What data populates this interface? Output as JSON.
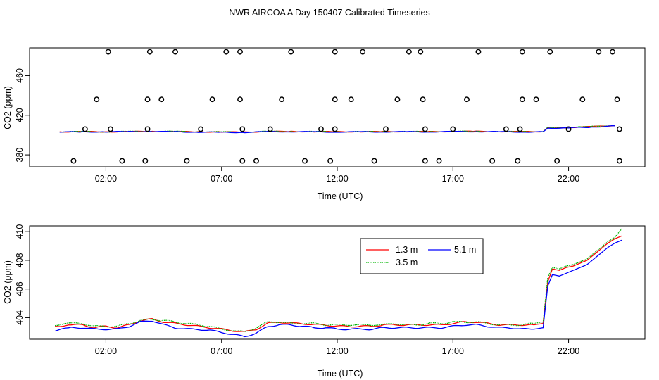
{
  "title": "NWR AIRCOA A  Day 150407  Calibrated Timeseries",
  "colors": {
    "red": "#ff0000",
    "green": "#00b400",
    "blue": "#0000ff",
    "axis": "#000000"
  },
  "chart_data": [
    {
      "type": "scatter",
      "title": "",
      "xlabel": "Time (UTC)",
      "ylabel": "CO2 (ppm)",
      "xlim_hours": [
        -1.3,
        25.3
      ],
      "ylim": [
        368,
        488
      ],
      "xticks": [
        2,
        7,
        12,
        17,
        22
      ],
      "xtick_labels": [
        "02:00",
        "07:00",
        "12:00",
        "17:00",
        "22:00"
      ],
      "yticks": [
        380,
        420,
        460
      ],
      "ytick_labels": [
        "380",
        "420",
        "460"
      ],
      "points_hours": {
        "y374": [
          0.6,
          2.7,
          3.7,
          5.5,
          7.9,
          8.5,
          10.6,
          11.7,
          13.6,
          15.8,
          16.4,
          18.7,
          19.8,
          21.5,
          24.2
        ],
        "y406": [
          1.1,
          2.2,
          3.8,
          6.1,
          7.9,
          9.1,
          11.3,
          11.9,
          14.1,
          15.8,
          17.0,
          19.3,
          19.9,
          22.0,
          24.2
        ],
        "y436": [
          1.6,
          3.8,
          4.4,
          6.6,
          7.8,
          9.6,
          11.9,
          12.6,
          14.6,
          15.7,
          17.6,
          20.0,
          20.6,
          22.6,
          24.1
        ],
        "y484": [
          2.1,
          3.9,
          5.0,
          7.2,
          7.8,
          10.0,
          11.9,
          13.1,
          15.1,
          15.6,
          18.1,
          20.0,
          21.2,
          23.3,
          23.9
        ]
      },
      "series": [
        {
          "name": "1.3 m",
          "color": "#ff0000",
          "x": [
            0,
            1,
            2,
            3,
            4,
            5,
            6,
            7,
            8,
            9,
            10,
            11,
            12,
            13,
            14,
            15,
            16,
            17,
            18,
            19,
            20,
            20.9,
            21.1,
            22,
            23,
            24
          ],
          "values": [
            403.3,
            403.4,
            403.3,
            403.5,
            403.7,
            403.5,
            403.3,
            403.2,
            403.0,
            403.6,
            403.6,
            403.4,
            403.4,
            403.4,
            403.5,
            403.5,
            403.4,
            403.6,
            403.7,
            403.5,
            403.4,
            403.5,
            407.4,
            407.6,
            408.5,
            409.7
          ]
        },
        {
          "name": "3.5 m",
          "color": "#00b400",
          "x": [
            0,
            1,
            2,
            3,
            4,
            5,
            6,
            7,
            8,
            9,
            10,
            11,
            12,
            13,
            14,
            15,
            16,
            17,
            18,
            19,
            20,
            20.9,
            21.1,
            22,
            23,
            24
          ],
          "values": [
            403.4,
            403.5,
            403.3,
            403.6,
            403.8,
            403.6,
            403.4,
            403.2,
            403.0,
            403.7,
            403.6,
            403.5,
            403.4,
            403.4,
            403.5,
            403.5,
            403.5,
            403.6,
            403.7,
            403.5,
            403.5,
            403.6,
            407.5,
            407.6,
            408.6,
            410.0
          ]
        },
        {
          "name": "5.1 m",
          "color": "#0000ff",
          "x": [
            0,
            1,
            2,
            3,
            4,
            5,
            6,
            7,
            8,
            9,
            10,
            11,
            12,
            13,
            14,
            15,
            16,
            17,
            18,
            19,
            20,
            20.9,
            21.1,
            22,
            23,
            24
          ],
          "values": [
            403.1,
            403.2,
            403.2,
            403.5,
            403.6,
            403.3,
            403.0,
            402.8,
            402.7,
            403.4,
            403.4,
            403.2,
            403.1,
            403.2,
            403.3,
            403.3,
            403.3,
            403.4,
            403.5,
            403.3,
            403.1,
            403.3,
            407.0,
            407.2,
            408.0,
            409.3
          ]
        }
      ]
    },
    {
      "type": "line",
      "title": "",
      "xlabel": "Time (UTC)",
      "ylabel": "CO2 (ppm)",
      "xlim_hours": [
        -1.3,
        25.3
      ],
      "ylim": [
        402.5,
        410.4
      ],
      "xticks": [
        2,
        7,
        12,
        17,
        22
      ],
      "xtick_labels": [
        "02:00",
        "07:00",
        "12:00",
        "17:00",
        "22:00"
      ],
      "yticks": [
        404,
        406,
        408,
        410
      ],
      "ytick_labels": [
        "404",
        "406",
        "408",
        "410"
      ],
      "legend": {
        "placement": "top-right",
        "entries": [
          "1.3 m",
          "3.5 m",
          "5.1 m"
        ]
      },
      "series": [
        {
          "name": "1.3 m",
          "color": "#ff0000",
          "x": [
            -0.2,
            0.5,
            1,
            1.5,
            2,
            2.5,
            3,
            3.5,
            4,
            4.5,
            5,
            5.5,
            6,
            6.5,
            7,
            7.5,
            8,
            8.5,
            9,
            9.5,
            10,
            10.5,
            11,
            11.5,
            12,
            12.5,
            13,
            13.5,
            14,
            14.5,
            15,
            15.5,
            16,
            16.5,
            17,
            17.5,
            18,
            18.5,
            19,
            19.5,
            20,
            20.5,
            20.9,
            21.1,
            21.3,
            21.6,
            21.9,
            22.2,
            22.5,
            22.8,
            23.1,
            23.4,
            23.7,
            24.0,
            24.3
          ],
          "values": [
            403.4,
            403.5,
            403.5,
            403.3,
            403.4,
            403.3,
            403.5,
            403.8,
            403.9,
            403.7,
            403.6,
            403.5,
            403.4,
            403.3,
            403.2,
            403.1,
            403.0,
            403.2,
            403.6,
            403.7,
            403.6,
            403.6,
            403.5,
            403.5,
            403.4,
            403.4,
            403.4,
            403.4,
            403.5,
            403.5,
            403.5,
            403.5,
            403.5,
            403.5,
            403.6,
            403.7,
            403.7,
            403.6,
            403.5,
            403.5,
            403.5,
            403.5,
            403.6,
            406.5,
            407.4,
            407.3,
            407.5,
            407.6,
            407.8,
            408.0,
            408.4,
            408.8,
            409.2,
            409.5,
            409.7
          ]
        },
        {
          "name": "3.5 m",
          "color": "#00b400",
          "x": [
            -0.2,
            0.5,
            1,
            1.5,
            2,
            2.5,
            3,
            3.5,
            4,
            4.5,
            5,
            5.5,
            6,
            6.5,
            7,
            7.5,
            8,
            8.5,
            9,
            9.5,
            10,
            10.5,
            11,
            11.5,
            12,
            12.5,
            13,
            13.5,
            14,
            14.5,
            15,
            15.5,
            16,
            16.5,
            17,
            17.5,
            18,
            18.5,
            19,
            19.5,
            20,
            20.5,
            20.9,
            21.1,
            21.3,
            21.6,
            21.9,
            22.2,
            22.5,
            22.8,
            23.1,
            23.4,
            23.7,
            24.0,
            24.3
          ],
          "values": [
            403.5,
            403.6,
            403.6,
            403.4,
            403.4,
            403.4,
            403.6,
            403.8,
            403.9,
            403.8,
            403.7,
            403.6,
            403.5,
            403.4,
            403.2,
            403.1,
            403.0,
            403.3,
            403.7,
            403.7,
            403.6,
            403.6,
            403.6,
            403.5,
            403.5,
            403.5,
            403.5,
            403.5,
            403.5,
            403.6,
            403.5,
            403.5,
            403.6,
            403.6,
            403.7,
            403.7,
            403.7,
            403.6,
            403.5,
            403.5,
            403.5,
            403.6,
            403.7,
            406.8,
            407.5,
            407.4,
            407.6,
            407.7,
            407.9,
            408.1,
            408.5,
            408.9,
            409.3,
            409.6,
            410.2
          ]
        },
        {
          "name": "5.1 m",
          "color": "#0000ff",
          "x": [
            -0.2,
            0.5,
            1,
            1.5,
            2,
            2.5,
            3,
            3.5,
            4,
            4.5,
            5,
            5.5,
            6,
            6.5,
            7,
            7.5,
            8,
            8.5,
            9,
            9.5,
            10,
            10.5,
            11,
            11.5,
            12,
            12.5,
            13,
            13.5,
            14,
            14.5,
            15,
            15.5,
            16,
            16.5,
            17,
            17.5,
            18,
            18.5,
            19,
            19.5,
            20,
            20.5,
            20.9,
            21.1,
            21.3,
            21.6,
            21.9,
            22.2,
            22.5,
            22.8,
            23.1,
            23.4,
            23.7,
            24.0,
            24.3
          ],
          "values": [
            403.1,
            403.3,
            403.3,
            403.2,
            403.2,
            403.2,
            403.4,
            403.7,
            403.8,
            403.5,
            403.3,
            403.2,
            403.2,
            403.1,
            403.0,
            402.8,
            402.7,
            402.9,
            403.4,
            403.5,
            403.5,
            403.4,
            403.3,
            403.3,
            403.2,
            403.2,
            403.2,
            403.2,
            403.3,
            403.3,
            403.3,
            403.3,
            403.3,
            403.3,
            403.4,
            403.5,
            403.5,
            403.4,
            403.3,
            403.3,
            403.2,
            403.2,
            403.3,
            406.2,
            407.0,
            406.9,
            407.1,
            407.3,
            407.5,
            407.7,
            408.1,
            408.5,
            408.9,
            409.2,
            409.4
          ]
        }
      ]
    }
  ]
}
